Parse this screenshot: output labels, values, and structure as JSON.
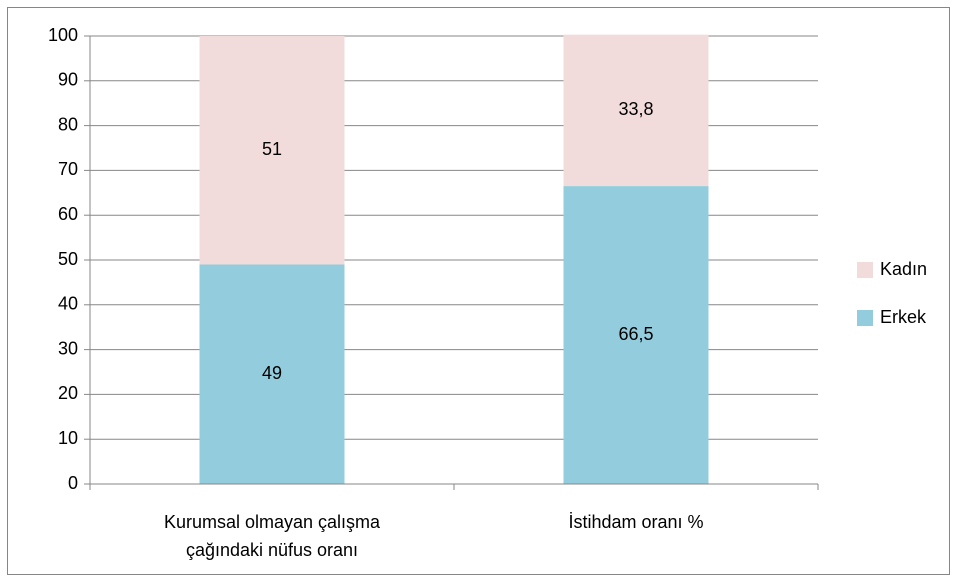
{
  "chart_data": {
    "type": "stacked_bar",
    "categories": [
      "Kurumsal olmayan çalışma çağındaki nüfus oranı",
      "İstihdam oranı %"
    ],
    "series": [
      {
        "name": "Erkek",
        "color": "#93cddd",
        "values": [
          49,
          66.5
        ],
        "value_labels": [
          "49",
          "66,5"
        ]
      },
      {
        "name": "Kadın",
        "color": "#f2dcdb",
        "values": [
          51,
          33.8
        ],
        "value_labels": [
          "51",
          "33,8"
        ]
      }
    ],
    "ylim": [
      0,
      100
    ],
    "yticks": [
      0,
      10,
      20,
      30,
      40,
      50,
      60,
      70,
      80,
      90,
      100
    ],
    "grid": true,
    "legend": "right"
  }
}
